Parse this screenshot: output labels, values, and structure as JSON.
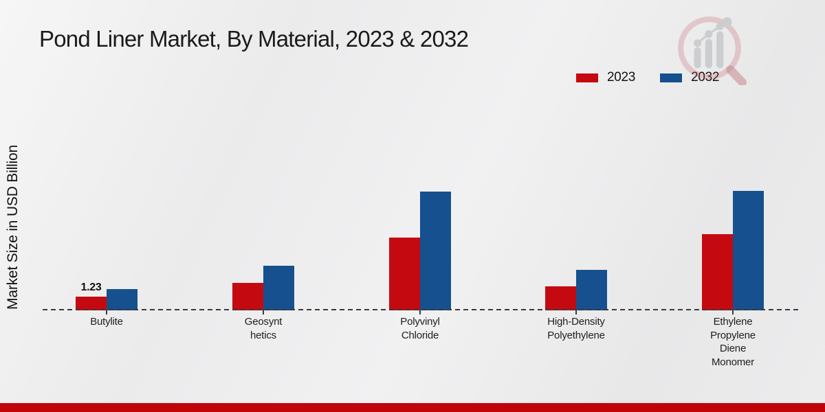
{
  "chart_data": {
    "type": "bar",
    "title": "Pond Liner Market, By Material, 2023 & 2032",
    "ylabel": "Market Size in USD Billion",
    "categories": [
      "Butylite",
      "Geosynthetics",
      "Polyvinyl Chloride",
      "High-Density Polyethylene",
      "Ethylene Propylene Diene Monomer"
    ],
    "category_label_lines": [
      [
        "Butylite"
      ],
      [
        "Geosynt",
        "hetics"
      ],
      [
        "Polyvinyl",
        "Chloride"
      ],
      [
        "High-Density",
        "Polyethylene"
      ],
      [
        "Ethylene",
        "Propylene",
        "Diene",
        "Monomer"
      ]
    ],
    "series": [
      {
        "name": "2023",
        "color": "#c40a10",
        "values": [
          1.23,
          2.45,
          6.5,
          2.15,
          6.8
        ]
      },
      {
        "name": "2032",
        "color": "#16508e",
        "values": [
          1.9,
          4.0,
          10.6,
          3.6,
          10.7
        ]
      }
    ],
    "annotations": [
      {
        "category_index": 0,
        "series_index": 0,
        "text": "1.23"
      }
    ],
    "baseline_style": "dashed",
    "legend_position": "top-right",
    "ylim": [
      0,
      12
    ],
    "grid": false
  },
  "footer": {
    "accent_color": "#c00508"
  },
  "logo": {
    "name": "magnifier-bar-chart-logo"
  }
}
